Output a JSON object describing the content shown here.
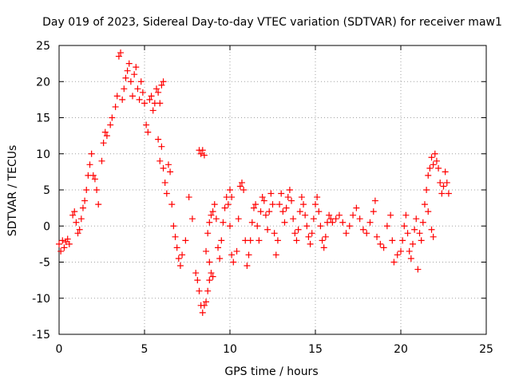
{
  "chart_data": {
    "type": "scatter",
    "title": "Day 019 of 2023, Sidereal Day-to-day VTEC variation (SDTVAR) for receiver maw1",
    "xlabel": "GPS time / hours",
    "ylabel": "SDTVAR / TECUs",
    "xlim": [
      0,
      25
    ],
    "ylim": [
      -15,
      25
    ],
    "xticks": [
      0,
      5,
      10,
      15,
      20,
      25
    ],
    "yticks": [
      -15,
      -10,
      -5,
      0,
      5,
      10,
      15,
      20,
      25
    ],
    "grid": true,
    "marker": "+",
    "color": "#ff0000",
    "series": [
      {
        "name": "SDTVAR",
        "points": [
          [
            0.0,
            -2.5
          ],
          [
            0.1,
            -3.5
          ],
          [
            0.2,
            -2.0
          ],
          [
            0.3,
            -3.0
          ],
          [
            0.4,
            -2.2
          ],
          [
            0.5,
            -1.8
          ],
          [
            0.6,
            -2.5
          ],
          [
            0.8,
            1.5
          ],
          [
            0.9,
            2.0
          ],
          [
            1.0,
            0.5
          ],
          [
            1.1,
            -1.0
          ],
          [
            1.2,
            -0.5
          ],
          [
            1.3,
            1.0
          ],
          [
            1.4,
            2.5
          ],
          [
            1.5,
            3.5
          ],
          [
            1.6,
            5.0
          ],
          [
            1.7,
            7.0
          ],
          [
            1.8,
            8.5
          ],
          [
            1.9,
            10.0
          ],
          [
            2.0,
            7.0
          ],
          [
            2.1,
            6.5
          ],
          [
            2.2,
            5.0
          ],
          [
            2.3,
            3.0
          ],
          [
            2.5,
            9.0
          ],
          [
            2.6,
            11.5
          ],
          [
            2.7,
            13.0
          ],
          [
            2.8,
            12.5
          ],
          [
            3.0,
            14.0
          ],
          [
            3.1,
            15.0
          ],
          [
            3.3,
            16.5
          ],
          [
            3.4,
            18.0
          ],
          [
            3.5,
            23.5
          ],
          [
            3.6,
            24.0
          ],
          [
            3.7,
            17.5
          ],
          [
            3.8,
            19.0
          ],
          [
            3.9,
            20.5
          ],
          [
            4.0,
            21.5
          ],
          [
            4.1,
            22.5
          ],
          [
            4.2,
            20.0
          ],
          [
            4.3,
            18.0
          ],
          [
            4.4,
            21.0
          ],
          [
            4.5,
            22.0
          ],
          [
            4.6,
            19.0
          ],
          [
            4.7,
            17.5
          ],
          [
            4.8,
            20.0
          ],
          [
            4.9,
            18.5
          ],
          [
            5.0,
            17.0
          ],
          [
            5.1,
            14.0
          ],
          [
            5.2,
            13.0
          ],
          [
            5.3,
            17.5
          ],
          [
            5.4,
            18.0
          ],
          [
            5.5,
            16.0
          ],
          [
            5.6,
            17.0
          ],
          [
            5.7,
            19.0
          ],
          [
            5.8,
            18.5
          ],
          [
            5.9,
            17.0
          ],
          [
            6.0,
            19.5
          ],
          [
            6.1,
            20.0
          ],
          [
            5.8,
            12.0
          ],
          [
            5.9,
            9.0
          ],
          [
            6.0,
            11.0
          ],
          [
            6.1,
            8.0
          ],
          [
            6.2,
            6.0
          ],
          [
            6.3,
            4.5
          ],
          [
            6.4,
            8.5
          ],
          [
            6.5,
            7.5
          ],
          [
            6.6,
            3.0
          ],
          [
            6.7,
            0.0
          ],
          [
            6.8,
            -1.5
          ],
          [
            6.9,
            -3.0
          ],
          [
            7.0,
            -4.5
          ],
          [
            7.1,
            -5.5
          ],
          [
            7.2,
            -4.0
          ],
          [
            7.4,
            -2.0
          ],
          [
            7.6,
            4.0
          ],
          [
            7.8,
            1.0
          ],
          [
            8.0,
            -6.5
          ],
          [
            8.1,
            -7.5
          ],
          [
            8.2,
            10.5
          ],
          [
            8.3,
            10.0
          ],
          [
            8.4,
            10.5
          ],
          [
            8.5,
            9.8
          ],
          [
            8.2,
            -9.0
          ],
          [
            8.3,
            -11.0
          ],
          [
            8.4,
            -12.0
          ],
          [
            8.5,
            -11.0
          ],
          [
            8.6,
            -10.5
          ],
          [
            8.7,
            -9.0
          ],
          [
            8.8,
            -7.5
          ],
          [
            8.9,
            -6.5
          ],
          [
            9.0,
            -7.0
          ],
          [
            8.8,
            -5.0
          ],
          [
            8.6,
            -3.5
          ],
          [
            8.7,
            -1.0
          ],
          [
            8.8,
            0.5
          ],
          [
            8.9,
            1.5
          ],
          [
            9.0,
            2.0
          ],
          [
            9.1,
            3.0
          ],
          [
            9.2,
            1.0
          ],
          [
            9.3,
            -3.0
          ],
          [
            9.4,
            -4.5
          ],
          [
            9.5,
            -2.0
          ],
          [
            9.6,
            0.5
          ],
          [
            9.7,
            2.5
          ],
          [
            9.8,
            4.0
          ],
          [
            9.9,
            3.0
          ],
          [
            10.0,
            5.0
          ],
          [
            10.1,
            4.0
          ],
          [
            10.0,
            0.0
          ],
          [
            10.1,
            -4.0
          ],
          [
            10.2,
            -5.0
          ],
          [
            10.4,
            -3.5
          ],
          [
            10.5,
            1.0
          ],
          [
            10.6,
            5.5
          ],
          [
            10.7,
            6.0
          ],
          [
            10.8,
            5.0
          ],
          [
            10.9,
            -2.0
          ],
          [
            11.0,
            -5.5
          ],
          [
            11.1,
            -4.0
          ],
          [
            11.2,
            -2.0
          ],
          [
            11.3,
            0.5
          ],
          [
            11.4,
            2.5
          ],
          [
            11.5,
            3.0
          ],
          [
            11.6,
            0.0
          ],
          [
            11.7,
            -2.0
          ],
          [
            11.8,
            2.0
          ],
          [
            11.9,
            4.0
          ],
          [
            12.0,
            3.5
          ],
          [
            12.1,
            1.5
          ],
          [
            12.2,
            -0.5
          ],
          [
            12.3,
            2.0
          ],
          [
            12.4,
            4.5
          ],
          [
            12.5,
            3.0
          ],
          [
            12.6,
            -1.0
          ],
          [
            12.7,
            -4.0
          ],
          [
            12.8,
            -2.0
          ],
          [
            12.9,
            3.0
          ],
          [
            13.0,
            4.5
          ],
          [
            13.1,
            2.0
          ],
          [
            13.2,
            0.5
          ],
          [
            13.3,
            2.5
          ],
          [
            13.4,
            4.0
          ],
          [
            13.5,
            5.0
          ],
          [
            13.6,
            3.5
          ],
          [
            13.7,
            1.0
          ],
          [
            13.8,
            -1.0
          ],
          [
            13.9,
            -2.0
          ],
          [
            14.0,
            -0.5
          ],
          [
            14.1,
            2.0
          ],
          [
            14.2,
            4.0
          ],
          [
            14.3,
            3.0
          ],
          [
            14.4,
            1.5
          ],
          [
            14.5,
            0.0
          ],
          [
            14.6,
            -1.5
          ],
          [
            14.7,
            -2.5
          ],
          [
            14.8,
            -1.0
          ],
          [
            14.9,
            1.0
          ],
          [
            15.0,
            3.0
          ],
          [
            15.1,
            4.0
          ],
          [
            15.2,
            2.0
          ],
          [
            15.3,
            0.0
          ],
          [
            15.4,
            -2.0
          ],
          [
            15.5,
            -3.0
          ],
          [
            15.6,
            -1.5
          ],
          [
            15.7,
            0.5
          ],
          [
            15.8,
            1.5
          ],
          [
            15.9,
            1.0
          ],
          [
            16.0,
            0.5
          ],
          [
            16.2,
            1.0
          ],
          [
            16.4,
            1.5
          ],
          [
            16.6,
            0.5
          ],
          [
            16.8,
            -1.0
          ],
          [
            17.0,
            0.0
          ],
          [
            17.2,
            1.5
          ],
          [
            17.4,
            2.5
          ],
          [
            17.6,
            1.0
          ],
          [
            17.8,
            -0.5
          ],
          [
            18.0,
            -1.0
          ],
          [
            18.2,
            0.5
          ],
          [
            18.4,
            2.0
          ],
          [
            18.5,
            3.5
          ],
          [
            18.6,
            -1.5
          ],
          [
            18.8,
            -2.5
          ],
          [
            19.0,
            -3.0
          ],
          [
            19.2,
            0.0
          ],
          [
            19.4,
            1.5
          ],
          [
            19.5,
            -2.0
          ],
          [
            19.6,
            -5.0
          ],
          [
            19.8,
            -4.0
          ],
          [
            20.0,
            -3.5
          ],
          [
            20.1,
            -2.0
          ],
          [
            20.2,
            0.0
          ],
          [
            20.3,
            1.5
          ],
          [
            20.4,
            -1.0
          ],
          [
            20.5,
            -3.5
          ],
          [
            20.6,
            -4.5
          ],
          [
            20.7,
            -2.5
          ],
          [
            20.8,
            -0.5
          ],
          [
            20.9,
            1.0
          ],
          [
            21.0,
            -6.0
          ],
          [
            21.1,
            -1.0
          ],
          [
            21.2,
            -2.0
          ],
          [
            21.3,
            0.5
          ],
          [
            21.4,
            3.0
          ],
          [
            21.5,
            5.0
          ],
          [
            21.6,
            7.0
          ],
          [
            21.7,
            8.0
          ],
          [
            21.8,
            9.5
          ],
          [
            21.9,
            8.5
          ],
          [
            22.0,
            10.0
          ],
          [
            22.1,
            9.0
          ],
          [
            22.2,
            8.0
          ],
          [
            22.3,
            6.0
          ],
          [
            22.4,
            4.5
          ],
          [
            22.5,
            5.5
          ],
          [
            22.6,
            7.5
          ],
          [
            22.7,
            6.0
          ],
          [
            22.8,
            4.5
          ],
          [
            21.6,
            2.0
          ],
          [
            21.8,
            -0.5
          ],
          [
            21.9,
            -1.5
          ]
        ]
      }
    ]
  }
}
